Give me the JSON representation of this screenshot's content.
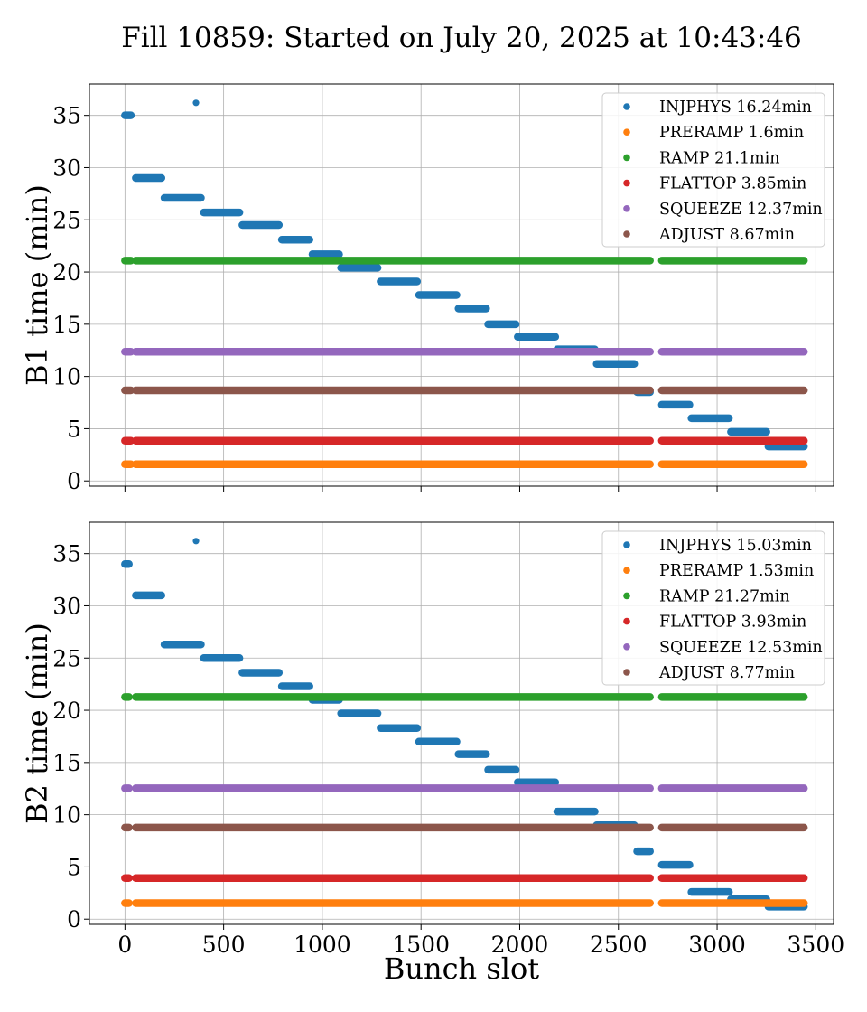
{
  "figure": {
    "title": "Fill 10859: Started on July 20, 2025 at 10:43:46",
    "xlabel": "Bunch slot"
  },
  "chart_data": [
    {
      "type": "scatter",
      "ylabel": "B1 time (min)",
      "xlim": [
        -180,
        3590
      ],
      "ylim": [
        -0.5,
        38
      ],
      "xticks": [
        0,
        500,
        1000,
        1500,
        2000,
        2500,
        3000,
        3500
      ],
      "yticks": [
        0,
        5,
        10,
        15,
        20,
        25,
        30,
        35
      ],
      "xtick_labels_shown": false,
      "grid": true,
      "legend_position": "top-right",
      "series": [
        {
          "name": "INJPHYS 16.24min",
          "color": "#1f77b4",
          "segments": [
            [
              0,
              30,
              35.0
            ],
            [
              55,
              185,
              29.0
            ],
            [
              200,
              385,
              27.1
            ],
            [
              400,
              580,
              25.7
            ],
            [
              595,
              780,
              24.5
            ],
            [
              795,
              935,
              23.1
            ],
            [
              950,
              1085,
              21.7
            ],
            [
              1095,
              1280,
              20.4
            ],
            [
              1295,
              1480,
              19.1
            ],
            [
              1490,
              1680,
              17.8
            ],
            [
              1690,
              1830,
              16.5
            ],
            [
              1840,
              1980,
              15.0
            ],
            [
              1990,
              2180,
              13.8
            ],
            [
              2190,
              2380,
              12.6
            ],
            [
              2390,
              2580,
              11.2
            ],
            [
              2595,
              2660,
              8.5
            ],
            [
              2720,
              2860,
              7.3
            ],
            [
              2870,
              3060,
              6.0
            ],
            [
              3070,
              3250,
              4.7
            ],
            [
              3260,
              3440,
              3.3
            ]
          ],
          "points": [
            [
              360,
              36.2
            ]
          ]
        },
        {
          "name": "PRERAMP 1.6min",
          "color": "#ff7f0e",
          "segments": [
            [
              0,
              30,
              1.6
            ],
            [
              55,
              2660,
              1.6
            ],
            [
              2720,
              3440,
              1.6
            ]
          ],
          "points": []
        },
        {
          "name": "RAMP 21.1min",
          "color": "#2ca02c",
          "segments": [
            [
              0,
              30,
              21.1
            ],
            [
              55,
              2660,
              21.1
            ],
            [
              2720,
              3440,
              21.1
            ]
          ],
          "points": []
        },
        {
          "name": "FLATTOP 3.85min",
          "color": "#d62728",
          "segments": [
            [
              0,
              30,
              3.85
            ],
            [
              55,
              2660,
              3.85
            ],
            [
              2720,
              3440,
              3.85
            ]
          ],
          "points": []
        },
        {
          "name": "SQUEEZE 12.37min",
          "color": "#9467bd",
          "segments": [
            [
              0,
              30,
              12.37
            ],
            [
              55,
              2660,
              12.37
            ],
            [
              2720,
              3440,
              12.37
            ]
          ],
          "points": []
        },
        {
          "name": "ADJUST 8.67min",
          "color": "#8c564b",
          "segments": [
            [
              0,
              30,
              8.67
            ],
            [
              55,
              2660,
              8.67
            ],
            [
              2720,
              3440,
              8.67
            ]
          ],
          "points": []
        }
      ]
    },
    {
      "type": "scatter",
      "ylabel": "B2 time (min)",
      "xlim": [
        -180,
        3590
      ],
      "ylim": [
        -0.5,
        38
      ],
      "xticks": [
        0,
        500,
        1000,
        1500,
        2000,
        2500,
        3000,
        3500
      ],
      "yticks": [
        0,
        5,
        10,
        15,
        20,
        25,
        30,
        35
      ],
      "xtick_labels_shown": true,
      "grid": true,
      "legend_position": "top-right",
      "series": [
        {
          "name": "INJPHYS 15.03min",
          "color": "#1f77b4",
          "segments": [
            [
              0,
              20,
              34.0
            ],
            [
              55,
              185,
              31.0
            ],
            [
              200,
              385,
              26.3
            ],
            [
              400,
              580,
              25.0
            ],
            [
              595,
              780,
              23.6
            ],
            [
              795,
              935,
              22.3
            ],
            [
              950,
              1085,
              21.0
            ],
            [
              1095,
              1280,
              19.7
            ],
            [
              1295,
              1480,
              18.3
            ],
            [
              1490,
              1680,
              17.0
            ],
            [
              1690,
              1830,
              15.8
            ],
            [
              1840,
              1980,
              14.3
            ],
            [
              1990,
              2180,
              13.1
            ],
            [
              2190,
              2380,
              10.3
            ],
            [
              2390,
              2580,
              9.0
            ],
            [
              2595,
              2660,
              6.5
            ],
            [
              2720,
              2860,
              5.2
            ],
            [
              2870,
              3060,
              2.6
            ],
            [
              3070,
              3250,
              1.9
            ],
            [
              3260,
              3440,
              1.2
            ]
          ],
          "points": [
            [
              360,
              36.2
            ]
          ]
        },
        {
          "name": "PRERAMP 1.53min",
          "color": "#ff7f0e",
          "segments": [
            [
              0,
              20,
              1.53
            ],
            [
              55,
              2660,
              1.53
            ],
            [
              2720,
              3440,
              1.53
            ]
          ],
          "points": []
        },
        {
          "name": "RAMP 21.27min",
          "color": "#2ca02c",
          "segments": [
            [
              0,
              20,
              21.27
            ],
            [
              55,
              2660,
              21.27
            ],
            [
              2720,
              3440,
              21.27
            ]
          ],
          "points": []
        },
        {
          "name": "FLATTOP 3.93min",
          "color": "#d62728",
          "segments": [
            [
              0,
              20,
              3.93
            ],
            [
              55,
              2660,
              3.93
            ],
            [
              2720,
              3440,
              3.93
            ]
          ],
          "points": []
        },
        {
          "name": "SQUEEZE 12.53min",
          "color": "#9467bd",
          "segments": [
            [
              0,
              20,
              12.53
            ],
            [
              55,
              2660,
              12.53
            ],
            [
              2720,
              3440,
              12.53
            ]
          ],
          "points": []
        },
        {
          "name": "ADJUST 8.77min",
          "color": "#8c564b",
          "segments": [
            [
              0,
              20,
              8.77
            ],
            [
              55,
              2660,
              8.77
            ],
            [
              2720,
              3440,
              8.77
            ]
          ],
          "points": []
        }
      ]
    }
  ]
}
